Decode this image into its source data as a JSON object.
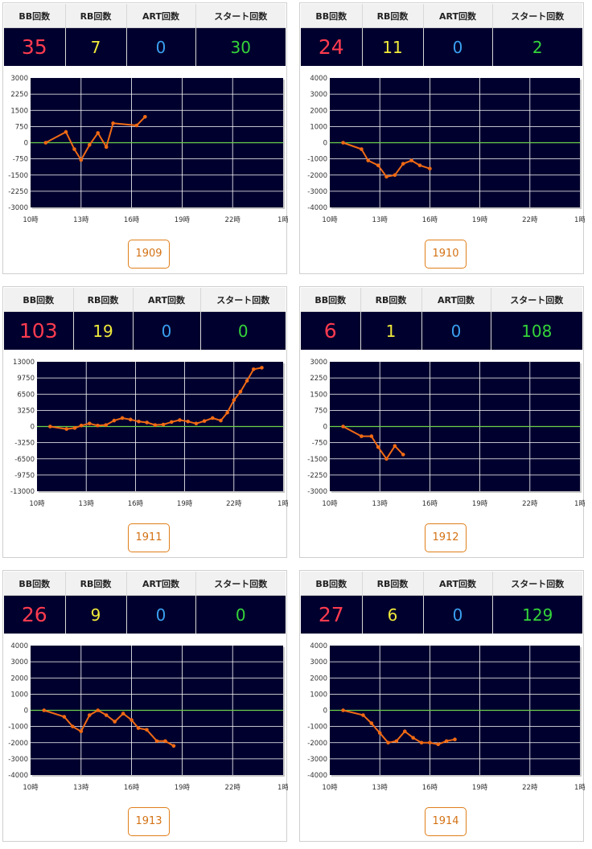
{
  "headers": {
    "bb": "BB回数",
    "rb": "RB回数",
    "art": "ART回数",
    "start": "スタート回数"
  },
  "colors": {
    "bb": "#ff3b4f",
    "rb": "#f0ea3a",
    "art": "#3aa0f0",
    "start": "#34d43a",
    "line": "#f06a14",
    "zero": "#6bd14a",
    "plot": "#00002e",
    "button": "#e07f1a"
  },
  "x_ticks": [
    "10時",
    "13時",
    "16時",
    "19時",
    "22時",
    "1時"
  ],
  "cards": [
    {
      "machine": "1909",
      "bb": "35",
      "rb": "7",
      "art": "0",
      "start": "30",
      "chart_data": {
        "type": "line",
        "x_ticks": [
          "10時",
          "13時",
          "16時",
          "19時",
          "22時",
          "1時"
        ],
        "y_ticks": [
          "3000",
          "2250",
          "1500",
          "750",
          "0",
          "-750",
          "-1500",
          "-2250",
          "-3000"
        ],
        "ylim": [
          -3000,
          3000
        ],
        "xlim": [
          10,
          25
        ],
        "x": [
          10.9,
          12.1,
          12.6,
          13.0,
          13.5,
          14.0,
          14.5,
          14.9,
          16.3,
          16.8
        ],
        "y": [
          0,
          500,
          -300,
          -800,
          -100,
          450,
          -200,
          900,
          800,
          1200
        ]
      }
    },
    {
      "machine": "1910",
      "bb": "24",
      "rb": "11",
      "art": "0",
      "start": "2",
      "chart_data": {
        "type": "line",
        "x_ticks": [
          "10時",
          "13時",
          "16時",
          "19時",
          "22時",
          "1時"
        ],
        "y_ticks": [
          "4000",
          "3000",
          "2000",
          "1000",
          "0",
          "-1000",
          "-2000",
          "-3000",
          "-4000"
        ],
        "ylim": [
          -4000,
          4000
        ],
        "xlim": [
          10,
          25
        ],
        "x": [
          10.8,
          11.9,
          12.3,
          12.9,
          13.4,
          13.9,
          14.4,
          14.9,
          15.4,
          16.0
        ],
        "y": [
          0,
          -400,
          -1100,
          -1400,
          -2100,
          -2000,
          -1300,
          -1100,
          -1400,
          -1600
        ]
      }
    },
    {
      "machine": "1911",
      "bb": "103",
      "rb": "19",
      "art": "0",
      "start": "0",
      "chart_data": {
        "type": "line",
        "x_ticks": [
          "10時",
          "13時",
          "16時",
          "19時",
          "22時",
          "1時"
        ],
        "y_ticks": [
          "13000",
          "9750",
          "6500",
          "3250",
          "0",
          "-3250",
          "-6500",
          "-9750",
          "-13000"
        ],
        "ylim": [
          -13000,
          13000
        ],
        "xlim": [
          10,
          25
        ],
        "x": [
          10.8,
          11.8,
          12.3,
          12.7,
          13.2,
          13.7,
          14.2,
          14.7,
          15.2,
          15.7,
          16.2,
          16.7,
          17.2,
          17.7,
          18.2,
          18.7,
          19.2,
          19.7,
          20.2,
          20.7,
          21.2,
          21.6,
          22.0,
          22.4,
          22.8,
          23.2,
          23.7
        ],
        "y": [
          0,
          -500,
          -300,
          200,
          600,
          200,
          300,
          1200,
          1700,
          1400,
          1000,
          800,
          300,
          400,
          900,
          1300,
          1000,
          600,
          1100,
          1700,
          1200,
          2800,
          5300,
          7000,
          9200,
          11500,
          11800
        ]
      }
    },
    {
      "machine": "1912",
      "bb": "6",
      "rb": "1",
      "art": "0",
      "start": "108",
      "chart_data": {
        "type": "line",
        "x_ticks": [
          "10時",
          "13時",
          "16時",
          "19時",
          "22時",
          "1時"
        ],
        "y_ticks": [
          "3000",
          "2250",
          "1500",
          "750",
          "0",
          "-750",
          "-1500",
          "-2250",
          "-3000"
        ],
        "ylim": [
          -3000,
          3000
        ],
        "xlim": [
          10,
          25
        ],
        "x": [
          10.8,
          11.9,
          12.5,
          12.9,
          13.4,
          13.9,
          14.4
        ],
        "y": [
          0,
          -450,
          -450,
          -950,
          -1500,
          -900,
          -1300
        ]
      }
    },
    {
      "machine": "1913",
      "bb": "26",
      "rb": "9",
      "art": "0",
      "start": "0",
      "chart_data": {
        "type": "line",
        "x_ticks": [
          "10時",
          "13時",
          "16時",
          "19時",
          "22時",
          "1時"
        ],
        "y_ticks": [
          "4000",
          "3000",
          "2000",
          "1000",
          "0",
          "-1000",
          "-2000",
          "-3000",
          "-4000"
        ],
        "ylim": [
          -4000,
          4000
        ],
        "xlim": [
          10,
          25
        ],
        "x": [
          10.8,
          12.0,
          12.5,
          13.0,
          13.5,
          14.0,
          14.5,
          15.0,
          15.5,
          16.0,
          16.4,
          16.9,
          17.5,
          18.0,
          18.5
        ],
        "y": [
          0,
          -400,
          -1000,
          -1300,
          -300,
          0,
          -300,
          -700,
          -200,
          -600,
          -1100,
          -1200,
          -1900,
          -1900,
          -2200
        ]
      }
    },
    {
      "machine": "1914",
      "bb": "27",
      "rb": "6",
      "art": "0",
      "start": "129",
      "chart_data": {
        "type": "line",
        "x_ticks": [
          "10時",
          "13時",
          "16時",
          "19時",
          "22時",
          "1時"
        ],
        "y_ticks": [
          "4000",
          "3000",
          "2000",
          "1000",
          "0",
          "-1000",
          "-2000",
          "-3000",
          "-4000"
        ],
        "ylim": [
          -4000,
          4000
        ],
        "xlim": [
          10,
          25
        ],
        "x": [
          10.8,
          12.0,
          12.5,
          13.0,
          13.5,
          14.0,
          14.5,
          15.0,
          15.5,
          16.0,
          16.5,
          17.0,
          17.5
        ],
        "y": [
          0,
          -300,
          -800,
          -1400,
          -2000,
          -1900,
          -1300,
          -1700,
          -2000,
          -2000,
          -2100,
          -1900,
          -1800
        ]
      }
    }
  ]
}
